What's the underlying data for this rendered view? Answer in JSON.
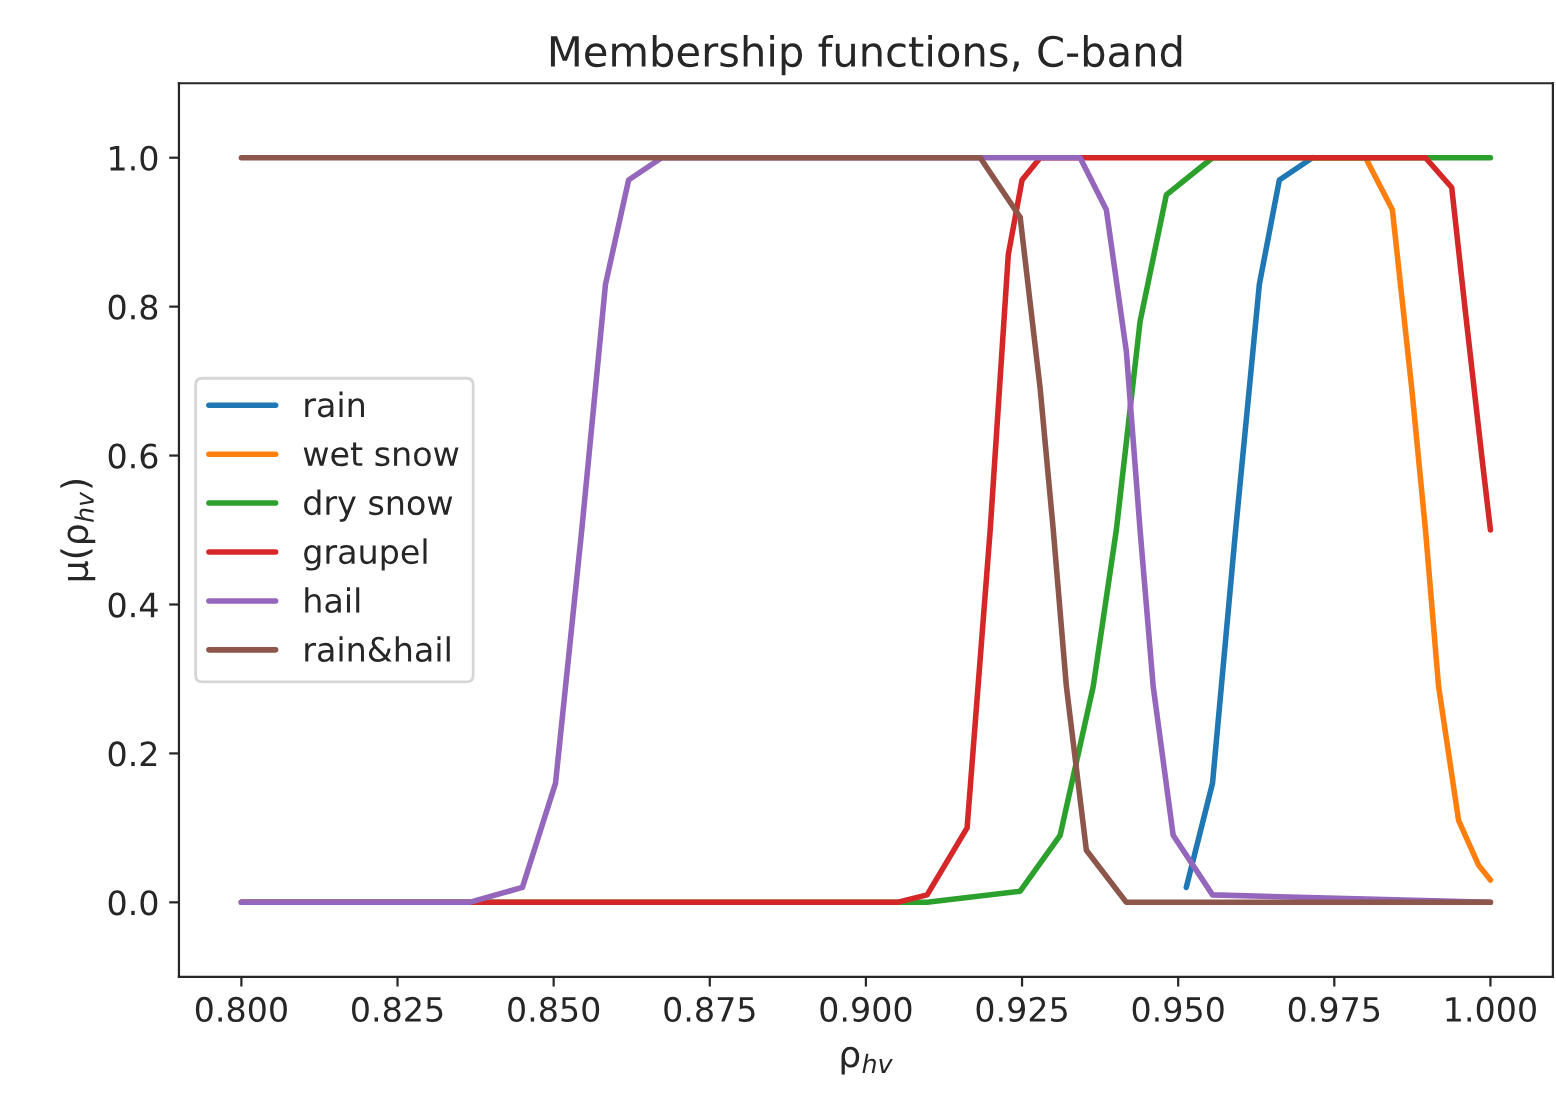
{
  "chart_data": {
    "type": "line",
    "title": "Membership functions, C-band",
    "xlabel": "ρ$_{hv}$",
    "ylabel": "μ(ρ$_{hv}$)",
    "xlim": [
      0.79,
      1.01
    ],
    "xticks": [
      {
        "value": 0.8,
        "label": "0.800"
      },
      {
        "value": 0.825,
        "label": "0.825"
      },
      {
        "value": 0.85,
        "label": "0.850"
      },
      {
        "value": 0.875,
        "label": "0.875"
      },
      {
        "value": 0.9,
        "label": "0.900"
      },
      {
        "value": 0.925,
        "label": "0.925"
      },
      {
        "value": 0.95,
        "label": "0.950"
      },
      {
        "value": 0.975,
        "label": "0.975"
      },
      {
        "value": 1.0,
        "label": "1.000"
      }
    ],
    "ylim": [
      -0.1,
      1.1
    ],
    "yticks": [
      {
        "value": 0,
        "label": "0.0"
      },
      {
        "value": 0.2,
        "label": "0.2"
      },
      {
        "value": 0.4,
        "label": "0.4"
      },
      {
        "value": 0.6,
        "label": "0.6"
      },
      {
        "value": 0.8,
        "label": "0.8"
      },
      {
        "value": 1.0,
        "label": "1.0"
      }
    ],
    "grid": false,
    "legend": "left",
    "marker": "none",
    "line_style": "solid",
    "series": [
      {
        "name": "rain",
        "color": "#1f77b4",
        "x": [
          0.9513,
          0.9555,
          0.9592,
          0.963,
          0.9662,
          0.9715
        ],
        "values": [
          0.02,
          0.16,
          0.5,
          0.83,
          0.97,
          1
        ]
      },
      {
        "name": "wet snow",
        "color": "#ff7f0e",
        "x": [
          0.9715,
          0.98,
          0.9843,
          0.9874,
          0.9896,
          0.9917,
          0.9949,
          0.9981,
          1.0
        ],
        "values": [
          1,
          1,
          0.93,
          0.69,
          0.5,
          0.29,
          0.11,
          0.05,
          0.03
        ]
      },
      {
        "name": "dry snow",
        "color": "#2ca02c",
        "x": [
          0.8,
          0.9098,
          0.9247,
          0.9311,
          0.9364,
          0.9401,
          0.9439,
          0.9481,
          0.9555,
          1.0
        ],
        "values": [
          0,
          0,
          0.015,
          0.09,
          0.29,
          0.5,
          0.78,
          0.95,
          1,
          1
        ]
      },
      {
        "name": "graupel",
        "color": "#d62728",
        "x": [
          0.8,
          0.905,
          0.9098,
          0.9162,
          0.9199,
          0.9228,
          0.925,
          0.9279,
          0.935,
          0.9896,
          0.9938,
          0.9959,
          0.9986,
          1.0
        ],
        "values": [
          0,
          0,
          0.01,
          0.1,
          0.5,
          0.87,
          0.97,
          1,
          1,
          1,
          0.96,
          0.8,
          0.6,
          0.5
        ]
      },
      {
        "name": "hail",
        "color": "#9467bd",
        "x": [
          0.8,
          0.8365,
          0.845,
          0.8503,
          0.8545,
          0.8583,
          0.862,
          0.8673,
          0.9343,
          0.9385,
          0.9417,
          0.9439,
          0.946,
          0.9492,
          0.9555,
          1.0
        ],
        "values": [
          0,
          0,
          0.02,
          0.16,
          0.5,
          0.83,
          0.97,
          1,
          1,
          0.93,
          0.74,
          0.5,
          0.29,
          0.09,
          0.01,
          0
        ]
      },
      {
        "name": "rain&hail",
        "color": "#8c564b",
        "x": [
          0.8,
          0.9183,
          0.9247,
          0.9279,
          0.93,
          0.9321,
          0.9353,
          0.9417,
          1.0
        ],
        "values": [
          1,
          1,
          0.92,
          0.69,
          0.5,
          0.29,
          0.07,
          0,
          0
        ]
      }
    ]
  }
}
